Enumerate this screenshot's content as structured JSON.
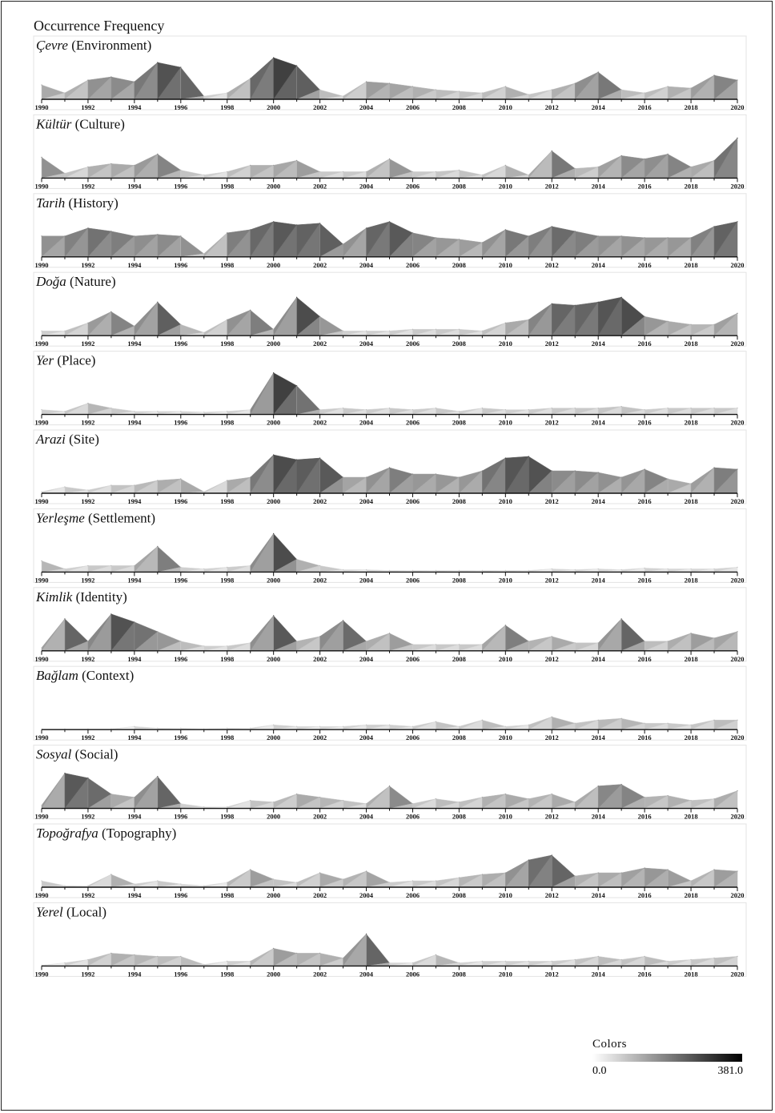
{
  "title": "Occurrence Frequency",
  "legend": {
    "title": "Colors",
    "min": "0.0",
    "max": "381.0",
    "min_value": 0,
    "max_value": 381
  },
  "chart_data": [
    {
      "type": "area",
      "title_term": "Çevre",
      "title_translation": "(Environment)",
      "x": [
        1990,
        1991,
        1992,
        1993,
        1994,
        1995,
        1996,
        1997,
        1998,
        1999,
        2000,
        2001,
        2002,
        2003,
        2004,
        2005,
        2006,
        2007,
        2008,
        2009,
        2010,
        2011,
        2012,
        2013,
        2014,
        2015,
        2016,
        2017,
        2018,
        2019,
        2020
      ],
      "values": [
        90,
        40,
        120,
        140,
        110,
        230,
        200,
        20,
        40,
        130,
        260,
        210,
        60,
        20,
        110,
        100,
        80,
        60,
        50,
        40,
        80,
        30,
        60,
        100,
        170,
        60,
        40,
        80,
        70,
        150,
        120
      ],
      "xticks": [
        "1990",
        "1992",
        "1994",
        "1996",
        "1998",
        "2000",
        "2002",
        "2004",
        "2006",
        "2008",
        "2010",
        "2012",
        "2014",
        "2016",
        "2018",
        "2020"
      ]
    },
    {
      "type": "area",
      "title_term": "Kültür",
      "title_translation": "(Culture)",
      "x": [
        1990,
        1991,
        1992,
        1993,
        1994,
        1995,
        1996,
        1997,
        1998,
        1999,
        2000,
        2001,
        2002,
        2003,
        2004,
        2005,
        2006,
        2007,
        2008,
        2009,
        2010,
        2011,
        2012,
        2013,
        2014,
        2015,
        2016,
        2017,
        2018,
        2019,
        2020
      ],
      "values": [
        130,
        30,
        70,
        90,
        80,
        150,
        50,
        20,
        40,
        80,
        80,
        110,
        40,
        40,
        40,
        120,
        40,
        40,
        50,
        20,
        80,
        20,
        170,
        60,
        70,
        140,
        120,
        150,
        70,
        110,
        250
      ],
      "xticks": [
        "1990",
        "1992",
        "1994",
        "1996",
        "1998",
        "2000",
        "2002",
        "2004",
        "2006",
        "2008",
        "2010",
        "2012",
        "2014",
        "2016",
        "2018",
        "2020"
      ]
    },
    {
      "type": "area",
      "title_term": "Tarih",
      "title_translation": "(History)",
      "x": [
        1990,
        1991,
        1992,
        1993,
        1994,
        1995,
        1996,
        1997,
        1998,
        1999,
        2000,
        2001,
        2002,
        2003,
        2004,
        2005,
        2006,
        2007,
        2008,
        2009,
        2010,
        2011,
        2012,
        2013,
        2014,
        2015,
        2016,
        2017,
        2018,
        2019,
        2020
      ],
      "values": [
        130,
        130,
        180,
        160,
        130,
        140,
        130,
        20,
        150,
        170,
        220,
        200,
        210,
        80,
        180,
        220,
        150,
        120,
        110,
        90,
        170,
        130,
        190,
        160,
        130,
        130,
        120,
        120,
        120,
        190,
        220
      ],
      "xticks": [
        "1990",
        "1992",
        "1994",
        "1996",
        "1998",
        "2000",
        "2002",
        "2004",
        "2006",
        "2008",
        "2010",
        "2012",
        "2014",
        "2016",
        "2018",
        "2020"
      ]
    },
    {
      "type": "area",
      "title_term": "Doğa",
      "title_translation": "(Nature)",
      "x": [
        1990,
        1991,
        1992,
        1993,
        1994,
        1995,
        1996,
        1997,
        1998,
        1999,
        2000,
        2001,
        2002,
        2003,
        2004,
        2005,
        2006,
        2007,
        2008,
        2009,
        2010,
        2011,
        2012,
        2013,
        2014,
        2015,
        2016,
        2017,
        2018,
        2019,
        2020
      ],
      "values": [
        30,
        30,
        80,
        150,
        60,
        210,
        70,
        20,
        100,
        160,
        40,
        240,
        120,
        30,
        30,
        30,
        40,
        40,
        40,
        30,
        80,
        100,
        200,
        190,
        210,
        240,
        120,
        90,
        70,
        70,
        140
      ],
      "xticks": [
        "1990",
        "1992",
        "1994",
        "1996",
        "1998",
        "2000",
        "2002",
        "2004",
        "2006",
        "2008",
        "2010",
        "2012",
        "2014",
        "2016",
        "2018",
        "2020"
      ]
    },
    {
      "type": "area",
      "title_term": "Yer",
      "title_translation": "(Place)",
      "x": [
        1990,
        1991,
        1992,
        1993,
        1994,
        1995,
        1996,
        1997,
        1998,
        1999,
        2000,
        2001,
        2002,
        2003,
        2004,
        2005,
        2006,
        2007,
        2008,
        2009,
        2010,
        2011,
        2012,
        2013,
        2014,
        2015,
        2016,
        2017,
        2018,
        2019,
        2020
      ],
      "values": [
        30,
        20,
        70,
        40,
        20,
        20,
        20,
        15,
        20,
        30,
        260,
        180,
        30,
        40,
        30,
        40,
        30,
        40,
        20,
        40,
        30,
        30,
        40,
        40,
        40,
        50,
        30,
        40,
        40,
        40,
        40
      ],
      "xticks": [
        "1990",
        "1992",
        "1994",
        "1996",
        "1998",
        "2000",
        "2002",
        "2004",
        "2006",
        "2008",
        "2010",
        "2012",
        "2014",
        "2016",
        "2018",
        "2020"
      ]
    },
    {
      "type": "area",
      "title_term": "Arazi",
      "title_translation": "(Site)",
      "x": [
        1990,
        1991,
        1992,
        1993,
        1994,
        1995,
        1996,
        1997,
        1998,
        1999,
        2000,
        2001,
        2002,
        2003,
        2004,
        2005,
        2006,
        2007,
        2008,
        2009,
        2010,
        2011,
        2012,
        2013,
        2014,
        2015,
        2016,
        2017,
        2018,
        2019,
        2020
      ],
      "values": [
        10,
        40,
        20,
        50,
        50,
        80,
        90,
        10,
        80,
        100,
        240,
        210,
        220,
        100,
        100,
        160,
        120,
        120,
        100,
        140,
        220,
        230,
        140,
        140,
        130,
        100,
        150,
        90,
        60,
        160,
        150
      ],
      "xticks": [
        "1990",
        "1992",
        "1994",
        "1996",
        "1998",
        "2000",
        "2002",
        "2004",
        "2006",
        "2008",
        "2010",
        "2012",
        "2014",
        "2016",
        "2018",
        "2020"
      ]
    },
    {
      "type": "area",
      "title_term": "Yerleşme",
      "title_translation": "(Settlement)",
      "x": [
        1990,
        1991,
        1992,
        1993,
        1994,
        1995,
        1996,
        1997,
        1998,
        1999,
        2000,
        2001,
        2002,
        2003,
        2004,
        2005,
        2006,
        2007,
        2008,
        2009,
        2010,
        2011,
        2012,
        2013,
        2014,
        2015,
        2016,
        2017,
        2018,
        2019,
        2020
      ],
      "values": [
        70,
        20,
        40,
        40,
        40,
        160,
        30,
        20,
        30,
        40,
        240,
        80,
        40,
        15,
        15,
        10,
        10,
        10,
        10,
        10,
        10,
        10,
        20,
        15,
        20,
        15,
        25,
        20,
        20,
        20,
        30
      ],
      "xticks": [
        "1990",
        "1992",
        "1994",
        "1996",
        "1998",
        "2000",
        "2002",
        "2004",
        "2006",
        "2008",
        "2010",
        "2012",
        "2014",
        "2016",
        "2018",
        "2020"
      ]
    },
    {
      "type": "area",
      "title_term": "Kimlik",
      "title_translation": "(Identity)",
      "x": [
        1990,
        1991,
        1992,
        1993,
        1994,
        1995,
        1996,
        1997,
        1998,
        1999,
        2000,
        2001,
        2002,
        2003,
        2004,
        2005,
        2006,
        2007,
        2008,
        2009,
        2010,
        2011,
        2012,
        2013,
        2014,
        2015,
        2016,
        2017,
        2018,
        2019,
        2020
      ],
      "values": [
        20,
        200,
        60,
        230,
        180,
        120,
        60,
        30,
        30,
        50,
        220,
        60,
        90,
        190,
        60,
        110,
        40,
        40,
        40,
        40,
        160,
        60,
        90,
        50,
        50,
        200,
        60,
        60,
        110,
        80,
        120
      ],
      "xticks": [
        "1990",
        "1992",
        "1994",
        "1996",
        "1998",
        "2000",
        "2002",
        "2004",
        "2006",
        "2008",
        "2010",
        "2012",
        "2014",
        "2016",
        "2018",
        "2020"
      ]
    },
    {
      "type": "area",
      "title_term": "Bağlam",
      "title_translation": "(Context)",
      "x": [
        1990,
        1991,
        1992,
        1993,
        1994,
        1995,
        1996,
        1997,
        1998,
        1999,
        2000,
        2001,
        2002,
        2003,
        2004,
        2005,
        2006,
        2007,
        2008,
        2009,
        2010,
        2011,
        2012,
        2013,
        2014,
        2015,
        2016,
        2017,
        2018,
        2019,
        2020
      ],
      "values": [
        5,
        5,
        5,
        5,
        20,
        10,
        10,
        5,
        10,
        10,
        30,
        20,
        20,
        20,
        30,
        30,
        20,
        50,
        20,
        60,
        20,
        30,
        80,
        40,
        60,
        70,
        40,
        40,
        30,
        60,
        60
      ],
      "xticks": [
        "1990",
        "1992",
        "1994",
        "1996",
        "1998",
        "2000",
        "2002",
        "2004",
        "2006",
        "2008",
        "2010",
        "2012",
        "2014",
        "2016",
        "2018",
        "2020"
      ]
    },
    {
      "type": "area",
      "title_term": "Sosyal",
      "title_translation": "(Social)",
      "x": [
        1990,
        1991,
        1992,
        1993,
        1994,
        1995,
        1996,
        1997,
        1998,
        1999,
        2000,
        2001,
        2002,
        2003,
        2004,
        2005,
        2006,
        2007,
        2008,
        2009,
        2010,
        2011,
        2012,
        2013,
        2014,
        2015,
        2016,
        2017,
        2018,
        2019,
        2020
      ],
      "values": [
        20,
        220,
        190,
        90,
        70,
        200,
        30,
        10,
        10,
        50,
        40,
        90,
        70,
        50,
        30,
        140,
        30,
        60,
        40,
        70,
        90,
        60,
        90,
        40,
        140,
        150,
        70,
        80,
        50,
        60,
        110
      ],
      "xticks": [
        "1990",
        "1992",
        "1994",
        "1996",
        "1998",
        "2000",
        "2002",
        "2004",
        "2006",
        "2008",
        "2010",
        "2012",
        "2014",
        "2016",
        "2018",
        "2020"
      ]
    },
    {
      "type": "area",
      "title_term": "Topoğrafya",
      "title_translation": "(Topography)",
      "x": [
        1990,
        1991,
        1992,
        1993,
        1994,
        1995,
        1996,
        1997,
        1998,
        1999,
        2000,
        2001,
        2002,
        2003,
        2004,
        2005,
        2006,
        2007,
        2008,
        2009,
        2010,
        2011,
        2012,
        2013,
        2014,
        2015,
        2016,
        2017,
        2018,
        2019,
        2020
      ],
      "values": [
        40,
        10,
        10,
        80,
        20,
        40,
        20,
        10,
        30,
        110,
        50,
        30,
        90,
        50,
        100,
        30,
        40,
        40,
        60,
        80,
        90,
        170,
        200,
        70,
        90,
        90,
        120,
        110,
        40,
        110,
        100
      ],
      "xticks": [
        "1990",
        "1992",
        "1994",
        "1996",
        "1998",
        "2000",
        "2002",
        "2004",
        "2006",
        "2008",
        "2010",
        "2012",
        "2014",
        "2016",
        "2018",
        "2020"
      ]
    },
    {
      "type": "area",
      "title_term": "Yerel",
      "title_translation": "(Local)",
      "x": [
        1990,
        1991,
        1992,
        1993,
        1994,
        1995,
        1996,
        1997,
        1998,
        1999,
        2000,
        2001,
        2002,
        2003,
        2004,
        2005,
        2006,
        2007,
        2008,
        2009,
        2010,
        2011,
        2012,
        2013,
        2014,
        2015,
        2016,
        2017,
        2018,
        2019,
        2020
      ],
      "values": [
        5,
        20,
        40,
        80,
        70,
        60,
        60,
        10,
        30,
        30,
        110,
        80,
        80,
        50,
        200,
        20,
        20,
        70,
        20,
        30,
        30,
        30,
        30,
        40,
        60,
        40,
        60,
        30,
        40,
        50,
        60
      ],
      "xticks": [
        "1990",
        "1992",
        "1994",
        "1996",
        "1998",
        "2000",
        "2002",
        "2004",
        "2006",
        "2008",
        "2010",
        "2012",
        "2014",
        "2016",
        "2018",
        "2020"
      ]
    }
  ]
}
